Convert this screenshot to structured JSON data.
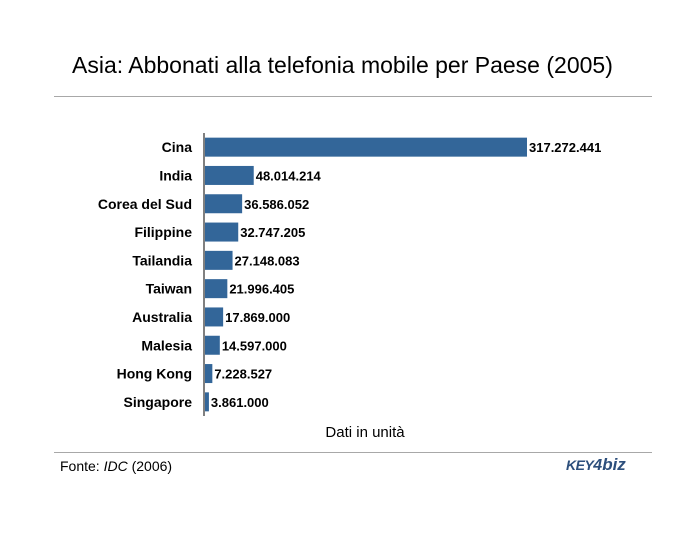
{
  "chart_data": {
    "type": "bar",
    "orientation": "horizontal",
    "title": "Asia: Abbonati alla telefonia mobile per Paese (2005)",
    "xlabel": "Dati in unità",
    "categories": [
      "Cina",
      "India",
      "Corea del Sud",
      "Filippine",
      "Tailandia",
      "Taiwan",
      "Australia",
      "Malesia",
      "Hong Kong",
      "Singapore"
    ],
    "values": [
      317272441,
      48014214,
      36586052,
      32747205,
      27148083,
      21996405,
      17869000,
      14597000,
      7228527,
      3861000
    ],
    "value_labels": [
      "317.272.441",
      "48.014.214",
      "36.586.052",
      "32.747.205",
      "27.148.083",
      "21.996.405",
      "17.869.000",
      "14.597.000",
      "7.228.527",
      "3.861.000"
    ],
    "xlim": [
      0,
      317272441
    ],
    "grid": false,
    "bar_color": "#336699"
  },
  "source": {
    "prefix": "Fonte: ",
    "name": "IDC",
    "suffix": " (2006)"
  },
  "logo": {
    "part1": "KEY",
    "part2": "4",
    "part3": "biz"
  }
}
